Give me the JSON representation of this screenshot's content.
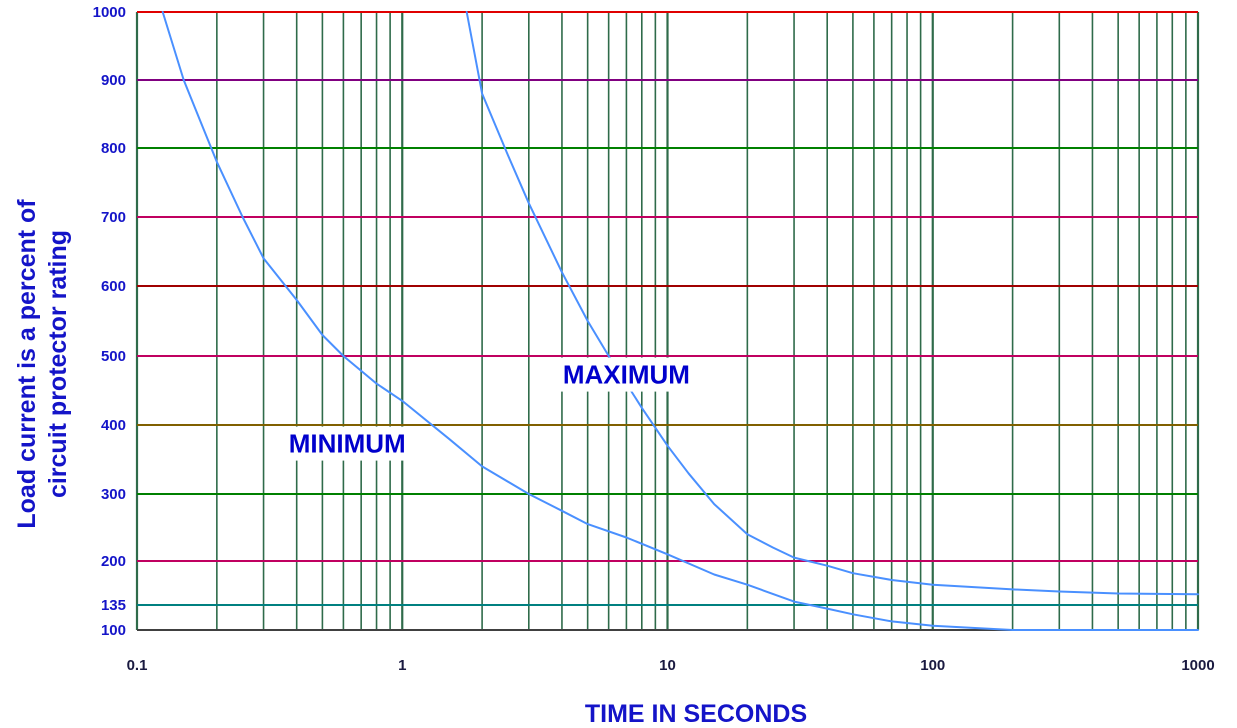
{
  "chart_data": {
    "type": "line",
    "title": "",
    "xlabel": "TIME IN SECONDS",
    "ylabel_lines": [
      "Load current is a percent of",
      "circuit protector rating"
    ],
    "x_scale": "log",
    "xlim": [
      0.1,
      1000
    ],
    "ylim": [
      100,
      1000
    ],
    "y_scale": "custom-nonlinear",
    "x_ticks": [
      {
        "value": 0.1,
        "label": "0.1"
      },
      {
        "value": 1,
        "label": "1"
      },
      {
        "value": 10,
        "label": "10"
      },
      {
        "value": 100,
        "label": "100"
      },
      {
        "value": 1000,
        "label": "1000"
      }
    ],
    "y_ticks": [
      {
        "value": 1000,
        "label": "1000",
        "line_color": "#e00000"
      },
      {
        "value": 900,
        "label": "900",
        "line_color": "#800080"
      },
      {
        "value": 800,
        "label": "800",
        "line_color": "#008000"
      },
      {
        "value": 700,
        "label": "700",
        "line_color": "#c00060"
      },
      {
        "value": 600,
        "label": "600",
        "line_color": "#a00000"
      },
      {
        "value": 500,
        "label": "500",
        "line_color": "#c00060"
      },
      {
        "value": 400,
        "label": "400",
        "line_color": "#806000"
      },
      {
        "value": 300,
        "label": "300",
        "line_color": "#008000"
      },
      {
        "value": 200,
        "label": "200",
        "line_color": "#c00060"
      },
      {
        "value": 135,
        "label": "135",
        "line_color": "#008080"
      },
      {
        "value": 100,
        "label": "100",
        "line_color": "#404040"
      }
    ],
    "grid": true,
    "annotations": [
      {
        "text": "MAXIMUM",
        "x": 7,
        "y": 460
      },
      {
        "text": "MINIMUM",
        "x": 0.62,
        "y": 360
      }
    ],
    "series": [
      {
        "name": "MAXIMUM",
        "color": "#4a90ff",
        "points": [
          [
            1.75,
            1000
          ],
          [
            2,
            880
          ],
          [
            2.5,
            790
          ],
          [
            3,
            720
          ],
          [
            4,
            620
          ],
          [
            5,
            550
          ],
          [
            6,
            500
          ],
          [
            7,
            460
          ],
          [
            8,
            425
          ],
          [
            10,
            370
          ],
          [
            12,
            330
          ],
          [
            15,
            285
          ],
          [
            20,
            240
          ],
          [
            25,
            220
          ],
          [
            30,
            205
          ],
          [
            40,
            193
          ],
          [
            50,
            182
          ],
          [
            70,
            172
          ],
          [
            100,
            165
          ],
          [
            200,
            158
          ],
          [
            300,
            155
          ],
          [
            500,
            152
          ],
          [
            1000,
            151
          ]
        ]
      },
      {
        "name": "MINIMUM",
        "color": "#4a90ff",
        "points": [
          [
            0.125,
            1000
          ],
          [
            0.15,
            900
          ],
          [
            0.2,
            780
          ],
          [
            0.25,
            700
          ],
          [
            0.3,
            640
          ],
          [
            0.4,
            580
          ],
          [
            0.5,
            530
          ],
          [
            0.6,
            500
          ],
          [
            0.8,
            460
          ],
          [
            1,
            435
          ],
          [
            1.5,
            380
          ],
          [
            2,
            340
          ],
          [
            3,
            300
          ],
          [
            4,
            275
          ],
          [
            5,
            255
          ],
          [
            7,
            235
          ],
          [
            10,
            210
          ],
          [
            15,
            180
          ],
          [
            20,
            165
          ],
          [
            30,
            140
          ],
          [
            40,
            130
          ],
          [
            50,
            122
          ],
          [
            70,
            112
          ],
          [
            100,
            106
          ],
          [
            200,
            100
          ],
          [
            1000,
            100
          ]
        ]
      }
    ],
    "colors": {
      "axis_text": "#1414c8",
      "curve": "#4a90ff",
      "annotation": "#0000cc",
      "vertical_grid": "#2f6b4a"
    }
  }
}
